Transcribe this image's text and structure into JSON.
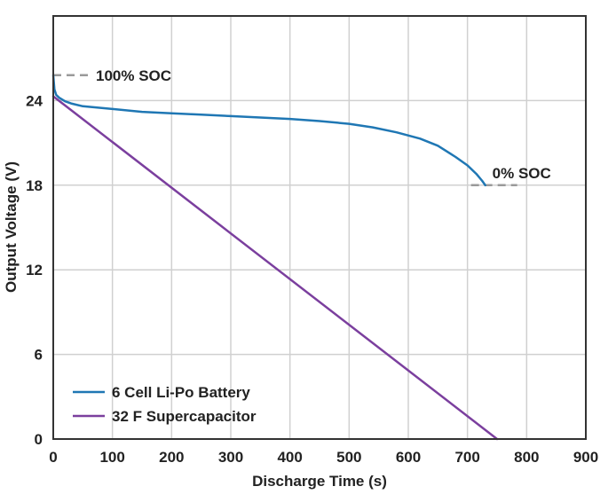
{
  "chart_data": {
    "type": "line",
    "title": "",
    "xlabel": "Discharge Time (s)",
    "ylabel": "Output Voltage (V)",
    "xlim": [
      0,
      900
    ],
    "ylim": [
      0,
      30
    ],
    "x_ticks": [
      0,
      100,
      200,
      300,
      400,
      500,
      600,
      700,
      800,
      900
    ],
    "y_ticks": [
      0,
      6,
      12,
      18,
      24
    ],
    "grid": true,
    "legend_position": "bottom-left",
    "series": [
      {
        "name": "6 Cell Li-Po Battery",
        "color": "#1f77b4",
        "points": [
          [
            0,
            25.8
          ],
          [
            2,
            24.8
          ],
          [
            5,
            24.4
          ],
          [
            10,
            24.2
          ],
          [
            20,
            23.95
          ],
          [
            30,
            23.8
          ],
          [
            50,
            23.6
          ],
          [
            100,
            23.4
          ],
          [
            150,
            23.2
          ],
          [
            200,
            23.1
          ],
          [
            250,
            23.0
          ],
          [
            300,
            22.9
          ],
          [
            350,
            22.8
          ],
          [
            400,
            22.7
          ],
          [
            450,
            22.55
          ],
          [
            500,
            22.35
          ],
          [
            540,
            22.1
          ],
          [
            580,
            21.75
          ],
          [
            620,
            21.3
          ],
          [
            650,
            20.8
          ],
          [
            680,
            20.0
          ],
          [
            700,
            19.4
          ],
          [
            715,
            18.8
          ],
          [
            725,
            18.3
          ],
          [
            730,
            18.0
          ]
        ]
      },
      {
        "name": "32 F Supercapacitor",
        "color": "#7b3f9e",
        "points": [
          [
            0,
            24.3
          ],
          [
            750,
            0
          ]
        ]
      }
    ],
    "annotations": [
      {
        "text": "100% SOC",
        "x": 0,
        "y": 25.8
      },
      {
        "text": "0% SOC",
        "x": 730,
        "y": 18.0
      }
    ]
  }
}
